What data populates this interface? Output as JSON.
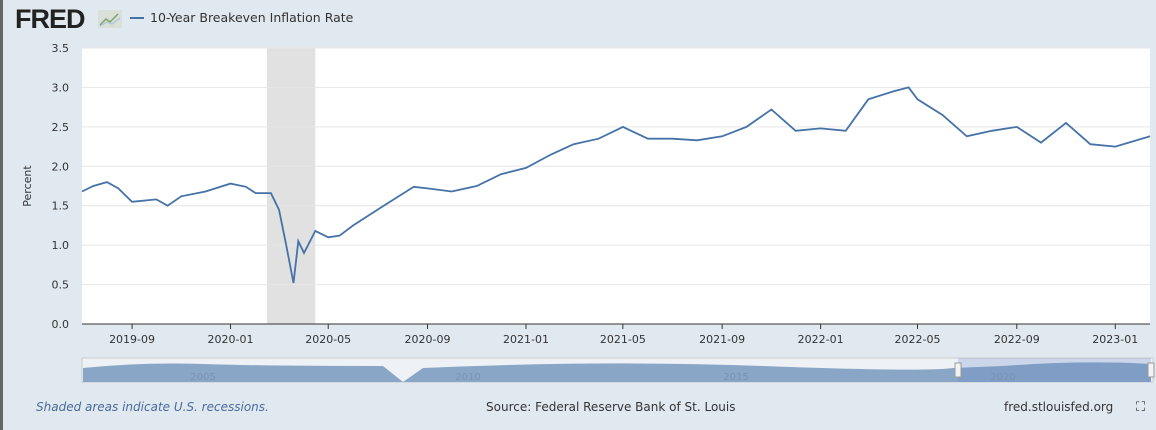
{
  "header": {
    "logo": "FRED",
    "series_label": "10-Year Breakeven Inflation Rate"
  },
  "footer": {
    "note": "Shaded areas indicate U.S. recessions.",
    "source": "Source: Federal Reserve Bank of St. Louis",
    "site": "fred.stlouisfed.org"
  },
  "colors": {
    "line": "#4572a7",
    "recession": "#e1e1e1",
    "navigator": "#8aa6c6"
  },
  "chart_data": {
    "type": "line",
    "title": "10-Year Breakeven Inflation Rate",
    "ylabel": "Percent",
    "xlabel": "",
    "ylim": [
      0,
      3.5
    ],
    "yticks": [
      "0.0",
      "0.5",
      "1.0",
      "1.5",
      "2.0",
      "2.5",
      "3.0",
      "3.5"
    ],
    "xticks": [
      "2019-09",
      "2020-01",
      "2020-05",
      "2020-09",
      "2021-01",
      "2021-05",
      "2021-09",
      "2022-01",
      "2022-05",
      "2022-09",
      "2023-01"
    ],
    "xrange": [
      "2019-07-01",
      "2023-02-13"
    ],
    "recessions": [
      [
        "2020-02-15",
        "2020-04-15"
      ]
    ],
    "navigator_years": [
      "2005",
      "2010",
      "2015",
      "2020"
    ],
    "series": [
      {
        "name": "10-Year Breakeven Inflation Rate",
        "points": [
          [
            "2019-07-01",
            1.68
          ],
          [
            "2019-07-15",
            1.75
          ],
          [
            "2019-08-01",
            1.8
          ],
          [
            "2019-08-15",
            1.72
          ],
          [
            "2019-09-01",
            1.55
          ],
          [
            "2019-10-01",
            1.58
          ],
          [
            "2019-10-15",
            1.5
          ],
          [
            "2019-11-01",
            1.62
          ],
          [
            "2019-12-01",
            1.68
          ],
          [
            "2020-01-01",
            1.78
          ],
          [
            "2020-01-20",
            1.74
          ],
          [
            "2020-02-01",
            1.66
          ],
          [
            "2020-02-20",
            1.66
          ],
          [
            "2020-03-01",
            1.45
          ],
          [
            "2020-03-10",
            1.0
          ],
          [
            "2020-03-19",
            0.52
          ],
          [
            "2020-03-25",
            1.05
          ],
          [
            "2020-04-01",
            0.9
          ],
          [
            "2020-04-15",
            1.18
          ],
          [
            "2020-05-01",
            1.1
          ],
          [
            "2020-05-15",
            1.12
          ],
          [
            "2020-06-01",
            1.25
          ],
          [
            "2020-07-01",
            1.45
          ],
          [
            "2020-08-01",
            1.65
          ],
          [
            "2020-08-15",
            1.74
          ],
          [
            "2020-09-01",
            1.72
          ],
          [
            "2020-10-01",
            1.68
          ],
          [
            "2020-11-01",
            1.75
          ],
          [
            "2020-12-01",
            1.9
          ],
          [
            "2021-01-01",
            1.98
          ],
          [
            "2021-02-01",
            2.15
          ],
          [
            "2021-03-01",
            2.28
          ],
          [
            "2021-04-01",
            2.35
          ],
          [
            "2021-05-01",
            2.5
          ],
          [
            "2021-06-01",
            2.35
          ],
          [
            "2021-07-01",
            2.35
          ],
          [
            "2021-08-01",
            2.33
          ],
          [
            "2021-09-01",
            2.38
          ],
          [
            "2021-10-01",
            2.5
          ],
          [
            "2021-11-01",
            2.72
          ],
          [
            "2021-12-01",
            2.45
          ],
          [
            "2022-01-01",
            2.48
          ],
          [
            "2022-02-01",
            2.45
          ],
          [
            "2022-03-01",
            2.85
          ],
          [
            "2022-04-01",
            2.95
          ],
          [
            "2022-04-20",
            3.0
          ],
          [
            "2022-05-01",
            2.85
          ],
          [
            "2022-06-01",
            2.65
          ],
          [
            "2022-07-01",
            2.38
          ],
          [
            "2022-08-01",
            2.45
          ],
          [
            "2022-09-01",
            2.5
          ],
          [
            "2022-10-01",
            2.3
          ],
          [
            "2022-11-01",
            2.55
          ],
          [
            "2022-12-01",
            2.28
          ],
          [
            "2023-01-01",
            2.25
          ],
          [
            "2023-02-13",
            2.38
          ]
        ]
      }
    ]
  }
}
